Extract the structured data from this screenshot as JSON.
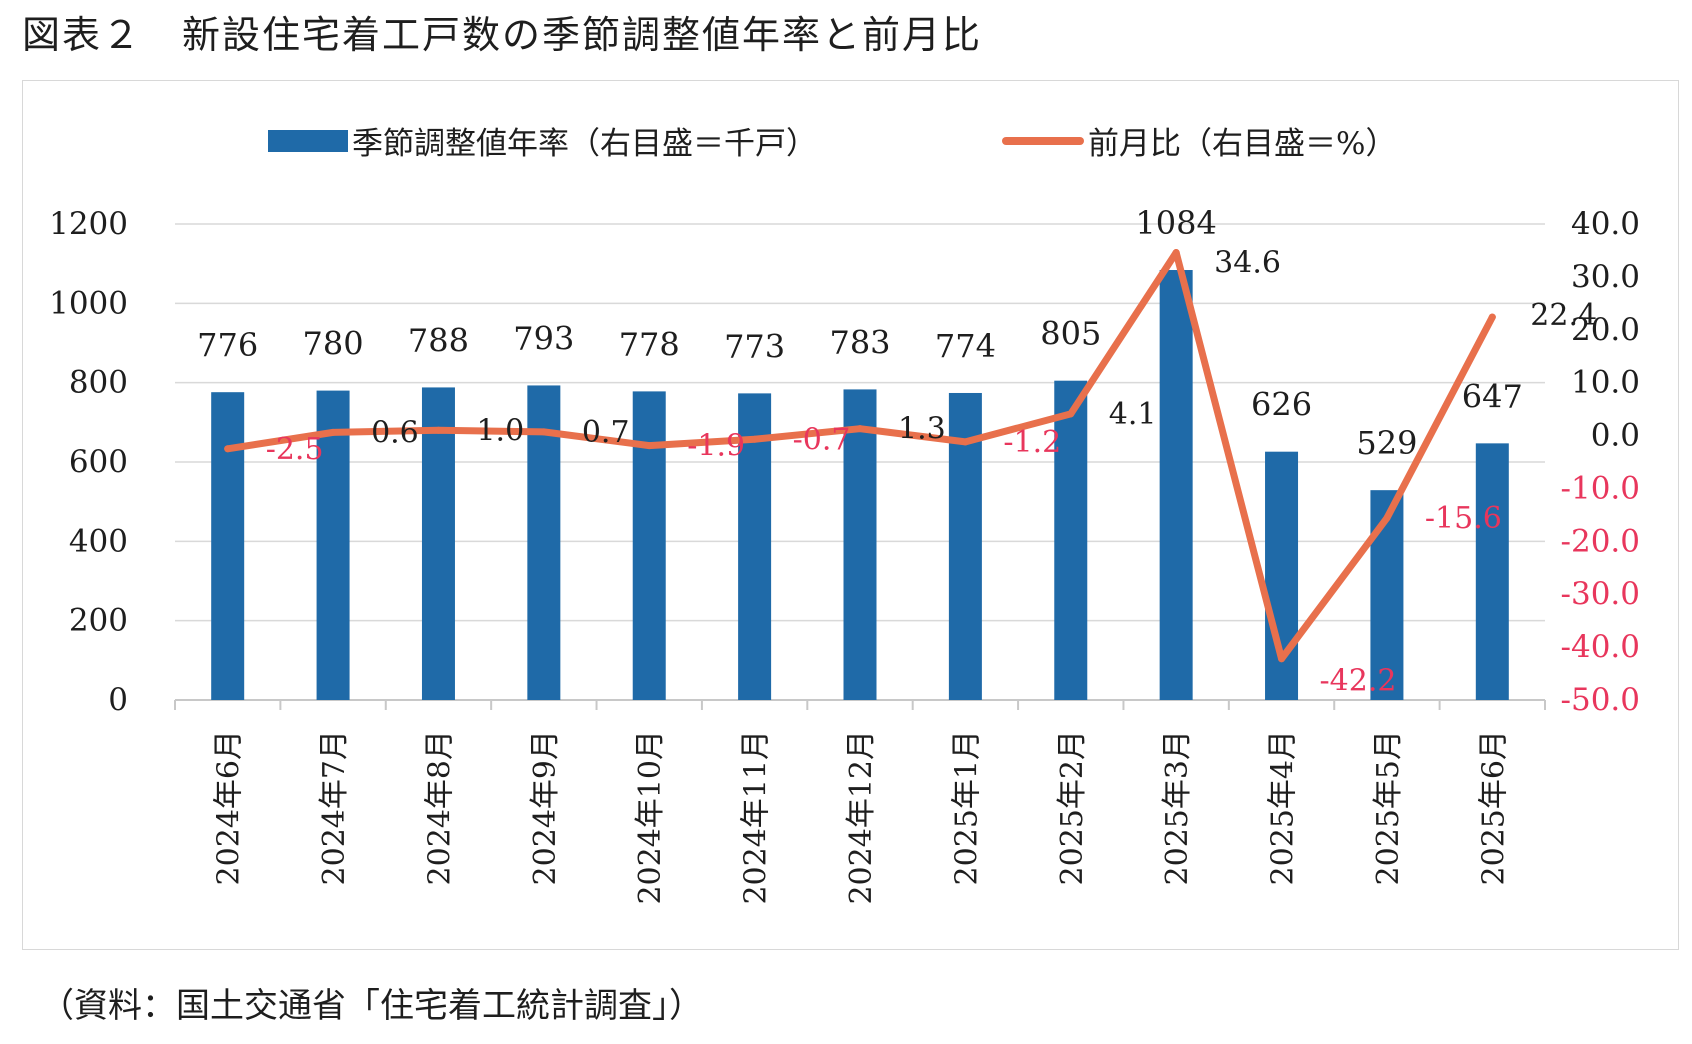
{
  "title": "図表２　新設住宅着工戸数の季節調整値年率と前月比",
  "source": "（資料：国土交通省「住宅着工統計調査」）",
  "colors": {
    "bar": "#1f6aa8",
    "line": "#e8704c",
    "negative_label": "#e8365c",
    "text": "#1e1e1e",
    "grid": "#d9d9d9"
  },
  "chart_data": {
    "type": "bar",
    "categories": [
      "2024年6月",
      "2024年7月",
      "2024年8月",
      "2024年9月",
      "2024年10月",
      "2024年11月",
      "2024年12月",
      "2025年1月",
      "2025年2月",
      "2025年3月",
      "2025年4月",
      "2025年5月",
      "2025年6月"
    ],
    "series": [
      {
        "name": "季節調整値年率（右目盛＝千戸）",
        "type": "bar",
        "axis": "left",
        "values": [
          776,
          780,
          788,
          793,
          778,
          773,
          783,
          774,
          805,
          1084,
          626,
          529,
          647
        ],
        "labels": [
          "776",
          "780",
          "788",
          "793",
          "778",
          "773",
          "783",
          "774",
          "805",
          "1084",
          "626",
          "529",
          "647"
        ]
      },
      {
        "name": "前月比（右目盛＝%）",
        "type": "line",
        "axis": "right",
        "values": [
          -2.5,
          0.6,
          1.0,
          0.7,
          -1.9,
          -0.7,
          1.3,
          -1.2,
          4.1,
          34.6,
          -42.2,
          -15.6,
          22.4
        ],
        "labels": [
          "-2.5",
          "0.6",
          "1.0",
          "0.7",
          "-1.9",
          "-0.7",
          "1.3",
          "-1.2",
          "4.1",
          "34.6",
          "-42.2",
          "-15.6",
          "22.4"
        ]
      }
    ],
    "left_axis": {
      "ylim": [
        0,
        1200
      ],
      "ticks": [
        0,
        200,
        400,
        600,
        800,
        1000,
        1200
      ],
      "tick_labels": [
        "0",
        "200",
        "400",
        "600",
        "800",
        "1000",
        "1200"
      ]
    },
    "right_axis": {
      "ylim": [
        -50,
        40
      ],
      "ticks": [
        -50,
        -40,
        -30,
        -20,
        -10,
        0,
        10,
        20,
        30,
        40
      ],
      "tick_labels": [
        "-50.0",
        "-40.0",
        "-30.0",
        "-20.0",
        "-10.0",
        "0.0",
        "10.0",
        "20.0",
        "30.0",
        "40.0"
      ]
    },
    "grid": true,
    "legend_position": "top"
  }
}
